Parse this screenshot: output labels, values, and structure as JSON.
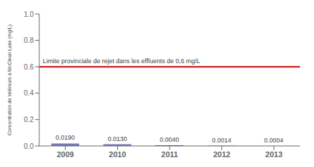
{
  "chart_data": {
    "type": "bar",
    "categories": [
      "2009",
      "2010",
      "2011",
      "2012",
      "2013"
    ],
    "values": [
      0.019,
      0.013,
      0.004,
      0.0014,
      0.0004
    ],
    "value_labels": [
      "0.0190",
      "0.0130",
      "0.0040",
      "0.0014",
      "0.0004"
    ],
    "data_labels": true,
    "colors": [
      "#7777bb",
      "#7777bb",
      "#222222",
      "#222222",
      "#222222"
    ],
    "ylabel": "Concentration de sélénium à McClean Lake (mg/L)",
    "ylim": [
      0.0,
      1.0
    ],
    "yticks": [
      {
        "value": 0.0,
        "label": "0.0"
      },
      0.2,
      0.4,
      0.6,
      0.8,
      {
        "value": 1.0,
        "label": "1.0"
      }
    ],
    "grid": false,
    "reference_lines": [
      {
        "y": 0.6,
        "label": "Limite provinciale de rejet dans les effluents de 0,6 mg/L",
        "color": "#cc0000"
      }
    ]
  }
}
